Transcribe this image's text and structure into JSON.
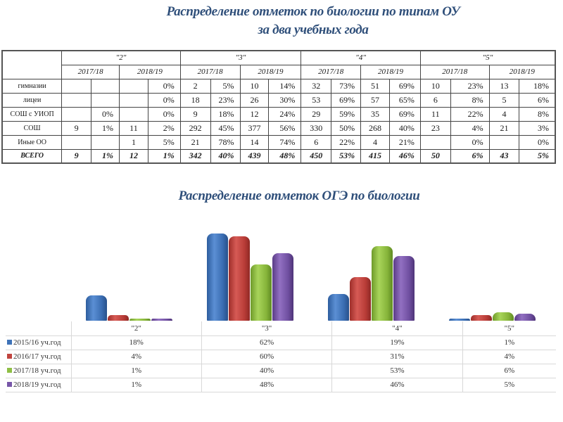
{
  "titles": {
    "table_title_line1": "Распределение отметок по биологии по типам ОУ",
    "table_title_line2": "за два учебных года",
    "chart_title": "Распределение отметок ОГЭ по биологии"
  },
  "grades_table": {
    "grade_headers": [
      "\"2\"",
      "\"3\"",
      "\"4\"",
      "\"5\""
    ],
    "year_headers": [
      "2017/18",
      "2018/19"
    ],
    "rows": [
      {
        "label": "гимназии",
        "cells": [
          "",
          "",
          "",
          "0%",
          "2",
          "5%",
          "10",
          "14%",
          "32",
          "73%",
          "51",
          "69%",
          "10",
          "23%",
          "13",
          "18%"
        ]
      },
      {
        "label": "лицеи",
        "cells": [
          "",
          "",
          "",
          "0%",
          "18",
          "23%",
          "26",
          "30%",
          "53",
          "69%",
          "57",
          "65%",
          "6",
          "8%",
          "5",
          "6%"
        ]
      },
      {
        "label": "СОШ с УИОП",
        "cells": [
          "",
          "0%",
          "",
          "0%",
          "9",
          "18%",
          "12",
          "24%",
          "29",
          "59%",
          "35",
          "69%",
          "11",
          "22%",
          "4",
          "8%"
        ]
      },
      {
        "label": "СОШ",
        "cells": [
          "9",
          "1%",
          "11",
          "2%",
          "292",
          "45%",
          "377",
          "56%",
          "330",
          "50%",
          "268",
          "40%",
          "23",
          "4%",
          "21",
          "3%"
        ]
      },
      {
        "label": "Иные ОО",
        "cells": [
          "",
          "",
          "1",
          "5%",
          "21",
          "78%",
          "14",
          "74%",
          "6",
          "22%",
          "4",
          "21%",
          "",
          "0%",
          "",
          "0%"
        ]
      },
      {
        "label": "ВСЕГО",
        "cells": [
          "9",
          "1%",
          "12",
          "1%",
          "342",
          "40%",
          "439",
          "48%",
          "450",
          "53%",
          "415",
          "46%",
          "50",
          "6%",
          "43",
          "5%"
        ]
      }
    ]
  },
  "colors": {
    "title": "#2f4f7a",
    "series": [
      "#3f73b8",
      "#c0443f",
      "#8fbf45",
      "#7756a8"
    ]
  },
  "chart_data": {
    "type": "bar",
    "title": "Распределение отметок ОГЭ по биологии",
    "categories": [
      "\"2\"",
      "\"3\"",
      "\"4\"",
      "\"5\""
    ],
    "series": [
      {
        "name": "2015/16 уч.год",
        "values": [
          18,
          62,
          19,
          1
        ],
        "labels": [
          "18%",
          "62%",
          "19%",
          "1%"
        ]
      },
      {
        "name": "2016/17 уч.год",
        "values": [
          4,
          60,
          31,
          4
        ],
        "labels": [
          "4%",
          "60%",
          "31%",
          "4%"
        ]
      },
      {
        "name": "2017/18 уч.год",
        "values": [
          1,
          40,
          53,
          6
        ],
        "labels": [
          "1%",
          "40%",
          "53%",
          "6%"
        ]
      },
      {
        "name": "2018/19 уч.год",
        "values": [
          1,
          48,
          46,
          5
        ],
        "labels": [
          "1%",
          "48%",
          "46%",
          "5%"
        ]
      }
    ],
    "xlabel": "",
    "ylabel": "",
    "ylim": [
      0,
      70
    ],
    "grid": false,
    "legend_position": "data-table-left",
    "unit": "%"
  }
}
